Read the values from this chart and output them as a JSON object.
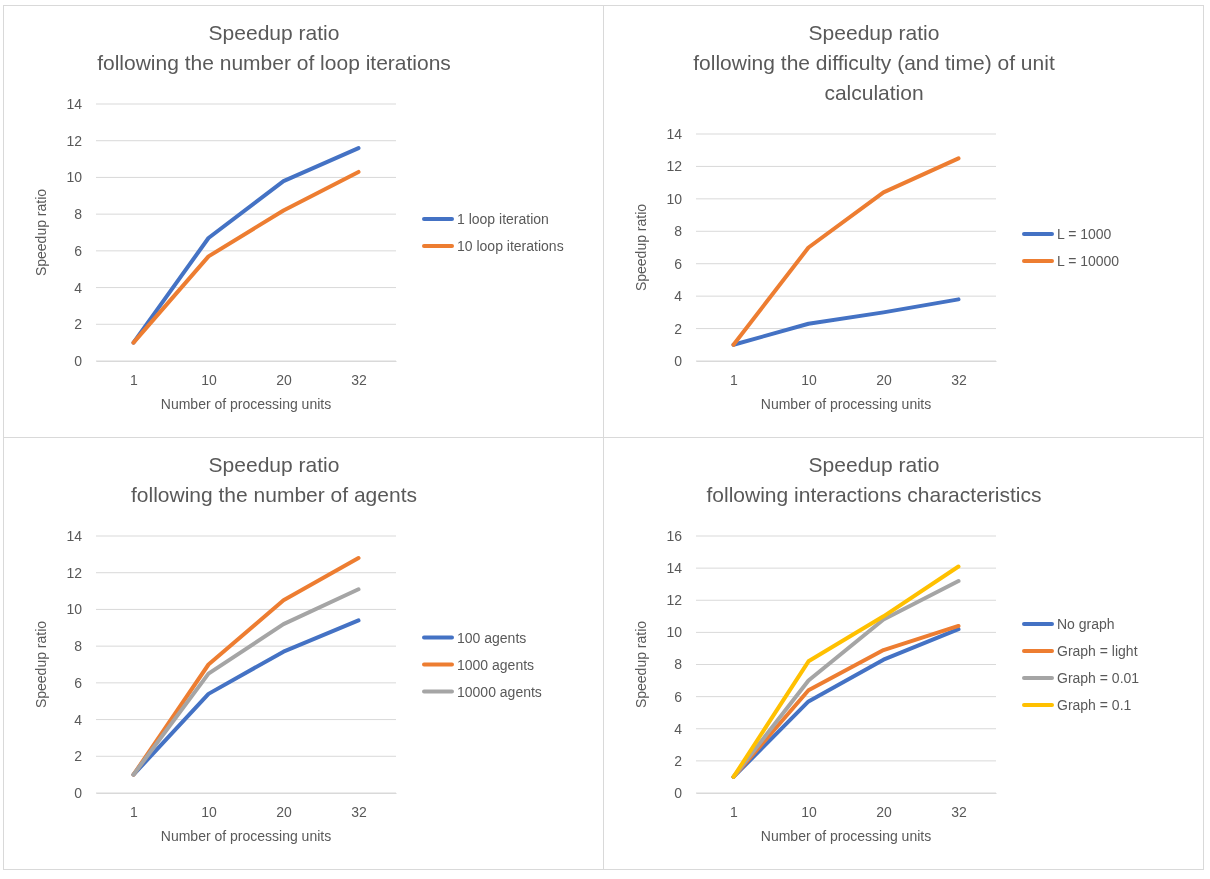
{
  "chart_data": [
    {
      "type": "line",
      "title": "Speedup ratio",
      "subtitle": "following the number of loop iterations",
      "xlabel": "Number  of processing units",
      "ylabel": "Speedup ratio",
      "categories": [
        "1",
        "10",
        "20",
        "32"
      ],
      "ylim": [
        0,
        14
      ],
      "yticks": [
        0,
        2,
        4,
        6,
        8,
        10,
        12,
        14
      ],
      "grid": "y",
      "legend": "right",
      "series": [
        {
          "name": "1 loop iteration",
          "color": "#4472c4",
          "values": [
            1,
            6.7,
            9.8,
            11.6
          ]
        },
        {
          "name": "10 loop iterations",
          "color": "#ed7d31",
          "values": [
            1,
            5.7,
            8.2,
            10.3
          ]
        }
      ]
    },
    {
      "type": "line",
      "title": "Speedup ratio",
      "subtitle": "following the difficulty (and time) of unit calculation",
      "xlabel": "Number  of processing units",
      "ylabel": "Speedup ratio",
      "categories": [
        "1",
        "10",
        "20",
        "32"
      ],
      "ylim": [
        0,
        14
      ],
      "yticks": [
        0,
        2,
        4,
        6,
        8,
        10,
        12,
        14
      ],
      "grid": "y",
      "legend": "right",
      "series": [
        {
          "name": "L = 1000",
          "color": "#4472c4",
          "values": [
            1,
            2.3,
            3.0,
            3.8
          ]
        },
        {
          "name": "L = 10000",
          "color": "#ed7d31",
          "values": [
            1,
            7.0,
            10.4,
            12.5
          ]
        }
      ]
    },
    {
      "type": "line",
      "title": "Speedup ratio",
      "subtitle": "following the number of agents",
      "xlabel": "Number  of processing units",
      "ylabel": "Speedup ratio",
      "categories": [
        "1",
        "10",
        "20",
        "32"
      ],
      "ylim": [
        0,
        14
      ],
      "yticks": [
        0,
        2,
        4,
        6,
        8,
        10,
        12,
        14
      ],
      "grid": "y",
      "legend": "right",
      "series": [
        {
          "name": "100 agents",
          "color": "#4472c4",
          "values": [
            1,
            5.4,
            7.7,
            9.4
          ]
        },
        {
          "name": "1000 agents",
          "color": "#ed7d31",
          "values": [
            1,
            7.0,
            10.5,
            12.8
          ]
        },
        {
          "name": "10000 agents",
          "color": "#a5a5a5",
          "values": [
            1,
            6.5,
            9.2,
            11.1
          ]
        }
      ]
    },
    {
      "type": "line",
      "title": "Speedup ratio",
      "subtitle": "following interactions characteristics",
      "xlabel": "Number  of processing units",
      "ylabel": "Speedup ratio",
      "categories": [
        "1",
        "10",
        "20",
        "32"
      ],
      "ylim": [
        0,
        16
      ],
      "yticks": [
        0,
        2,
        4,
        6,
        8,
        10,
        12,
        14,
        16
      ],
      "grid": "y",
      "legend": "right",
      "series": [
        {
          "name": "No graph",
          "color": "#4472c4",
          "values": [
            1,
            5.7,
            8.3,
            10.2
          ]
        },
        {
          "name": "Graph =  light",
          "color": "#ed7d31",
          "values": [
            1,
            6.4,
            8.9,
            10.4
          ]
        },
        {
          "name": "Graph = 0.01",
          "color": "#a5a5a5",
          "values": [
            1,
            7.0,
            10.8,
            13.2
          ]
        },
        {
          "name": "Graph = 0.1",
          "color": "#ffc000",
          "values": [
            1,
            8.2,
            11.0,
            14.1
          ]
        }
      ]
    }
  ]
}
